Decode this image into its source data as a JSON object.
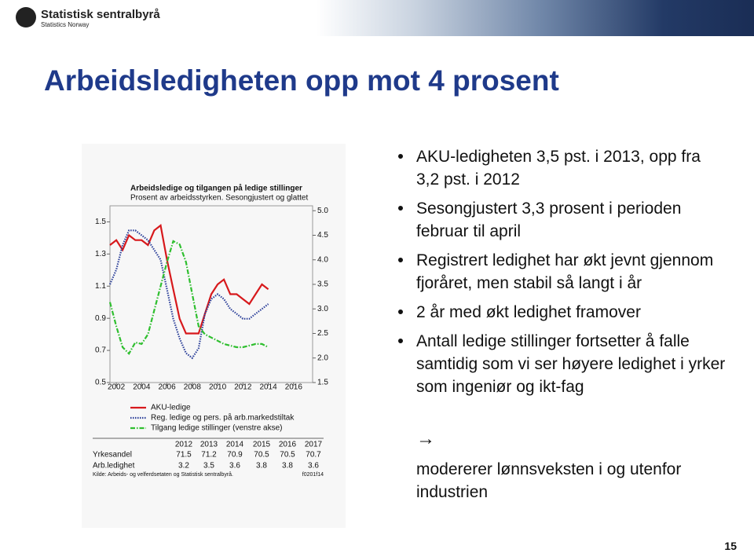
{
  "header": {
    "logo_name": "Statistisk sentralbyrå",
    "logo_sub": "Statistics Norway"
  },
  "title": "Arbeidsledigheten opp mot 4 prosent",
  "chart_data": {
    "type": "line",
    "title": "Arbeidsledige og tilgangen på ledige stillinger",
    "subtitle": "Prosent av arbeidsstyrken. Sesongjustert og glattet",
    "x": [
      2001.5,
      2002,
      2002.5,
      2003,
      2003.5,
      2004,
      2004.5,
      2005,
      2005.5,
      2006,
      2006.5,
      2007,
      2007.5,
      2008,
      2008.5,
      2009,
      2009.5,
      2010,
      2010.5,
      2011,
      2011.5,
      2012,
      2012.5,
      2013,
      2013.5,
      2014
    ],
    "xlim": [
      2001.5,
      2017.5
    ],
    "xticks": [
      2002,
      2004,
      2006,
      2008,
      2010,
      2012,
      2014,
      2016
    ],
    "ylim": [
      0.5,
      1.6
    ],
    "yticks": [
      0.5,
      0.7,
      0.9,
      1.1,
      1.3,
      1.5
    ],
    "y2lim": [
      1.5,
      5.1
    ],
    "y2ticks": [
      1.5,
      {
        "value": 2,
        "label": "2.0"
      },
      2.5,
      {
        "value": 3,
        "label": "3.0"
      },
      3.5,
      {
        "value": 4,
        "label": "4.0"
      },
      4.5,
      {
        "value": 5,
        "label": "5.0"
      }
    ],
    "series": [
      {
        "name": "AKU-ledige",
        "color": "#d7191c",
        "style": "solid",
        "axis": "y2",
        "values": [
          4.3,
          4.4,
          4.2,
          4.5,
          4.4,
          4.4,
          4.3,
          4.6,
          4.7,
          4.0,
          3.4,
          2.8,
          2.5,
          2.5,
          2.5,
          2.9,
          3.3,
          3.5,
          3.6,
          3.3,
          3.3,
          3.2,
          3.1,
          3.3,
          3.5,
          3.4
        ]
      },
      {
        "name": "Reg. ledige og pers. på arb.markedstiltak",
        "color": "#2b3f99",
        "style": "dotted",
        "axis": "y2",
        "values": [
          3.5,
          3.8,
          4.3,
          4.6,
          4.6,
          4.5,
          4.4,
          4.2,
          4.0,
          3.4,
          2.8,
          2.4,
          2.1,
          2.0,
          2.2,
          2.9,
          3.2,
          3.3,
          3.2,
          3.0,
          2.9,
          2.8,
          2.8,
          2.9,
          3.0,
          3.1
        ]
      },
      {
        "name": "Tilgang ledige stillinger (venstre akse)",
        "color": "#2fbf2f",
        "style": "dashdot",
        "values": [
          1.0,
          0.85,
          0.72,
          0.68,
          0.75,
          0.74,
          0.8,
          0.95,
          1.1,
          1.25,
          1.38,
          1.36,
          1.25,
          1.05,
          0.85,
          0.8,
          0.78,
          0.76,
          0.74,
          0.73,
          0.72,
          0.72,
          0.73,
          0.74,
          0.74,
          0.72
        ]
      }
    ],
    "table": {
      "columns": [
        2012,
        2013,
        2014,
        2015,
        2016,
        2017
      ],
      "rows": [
        {
          "label": "Yrkesandel",
          "values": [
            "71.5",
            "71.2",
            "70.9",
            "70.5",
            "70.5",
            "70.7"
          ]
        },
        {
          "label": "Arb.ledighet",
          "values": [
            "3.2",
            "3.5",
            "3.6",
            "3.8",
            "3.8",
            "3.6"
          ]
        }
      ]
    },
    "source": "Kilde: Arbeids- og velferdsetaten og Statistisk sentralbyrå.",
    "code": "f0201f14"
  },
  "bullets": [
    "AKU-ledigheten 3,5 pst. i 2013, opp fra 3,2 pst. i 2012",
    "Sesongjustert 3,3 prosent i perioden februar til april",
    "Registrert ledighet har økt jevnt gjennom fjoråret, men stabil så langt i år",
    "2 år med økt ledighet framover",
    "Antall ledige stillinger fortsetter å falle samtidig som vi ser høyere ledighet i yrker som ingeniør og ikt-fag"
  ],
  "arrow": "→",
  "conclusion": "modererer lønnsveksten i og utenfor industrien",
  "page_number": "15"
}
